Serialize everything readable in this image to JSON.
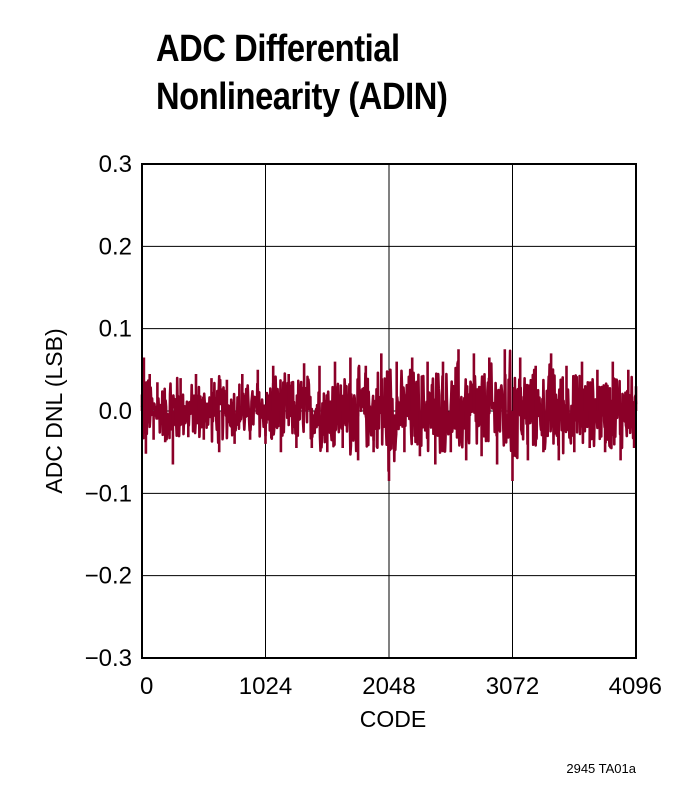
{
  "title_lines": [
    "ADC Differential",
    "Nonlinearity (ADIN)"
  ],
  "footnote": "2945 TA01a",
  "chart_data": {
    "type": "line",
    "title": "ADC Differential Nonlinearity (ADIN)",
    "xlabel": "CODE",
    "ylabel": "ADC DNL (LSB)",
    "xlim": [
      0,
      4096
    ],
    "ylim": [
      -0.3,
      0.3
    ],
    "x_ticks": [
      0,
      1024,
      2048,
      3072,
      4096
    ],
    "x_tick_labels": [
      "0",
      "1024",
      "2048",
      "3072",
      "4096"
    ],
    "y_ticks": [
      0.3,
      0.2,
      0.1,
      0.0,
      -0.1,
      -0.2,
      -0.3
    ],
    "y_tick_labels": [
      "0.3",
      "0.2",
      "0.1",
      "0.0",
      "−0.1",
      "−0.2",
      "−0.3"
    ],
    "grid": true,
    "line_color": "#8b0028",
    "series": [
      {
        "x": [
          0,
          16,
          32,
          64,
          96,
          128,
          192,
          256,
          320,
          384,
          448,
          512,
          576,
          640,
          704,
          768,
          832,
          896,
          960,
          1024,
          1088,
          1152,
          1216,
          1280,
          1344,
          1408,
          1472,
          1536,
          1600,
          1664,
          1728,
          1792,
          1856,
          1920,
          1984,
          2048,
          2112,
          2176,
          2240,
          2304,
          2368,
          2432,
          2496,
          2560,
          2624,
          2688,
          2752,
          2816,
          2880,
          2944,
          3008,
          3072,
          3136,
          3200,
          3264,
          3328,
          3392,
          3456,
          3520,
          3584,
          3648,
          3712,
          3776,
          3840,
          3904,
          3968,
          4032,
          4080,
          4096
        ],
        "y": [
          0.02,
          0.065,
          -0.052,
          0.045,
          -0.035,
          0.035,
          -0.038,
          -0.065,
          0.04,
          -0.032,
          0.045,
          -0.035,
          0.04,
          -0.05,
          0.038,
          -0.04,
          0.045,
          -0.035,
          0.05,
          -0.04,
          0.055,
          -0.05,
          0.045,
          -0.045,
          0.058,
          -0.045,
          0.055,
          -0.05,
          0.06,
          -0.045,
          0.065,
          -0.06,
          0.055,
          -0.05,
          0.07,
          -0.085,
          0.06,
          -0.05,
          0.065,
          -0.055,
          0.06,
          -0.065,
          0.06,
          -0.05,
          0.075,
          -0.06,
          0.07,
          -0.055,
          0.065,
          -0.065,
          0.075,
          -0.085,
          0.065,
          -0.06,
          0.055,
          -0.05,
          0.07,
          -0.06,
          0.055,
          -0.05,
          0.06,
          -0.045,
          0.05,
          -0.05,
          0.06,
          -0.06,
          0.05,
          -0.045,
          0.03
        ]
      }
    ]
  }
}
